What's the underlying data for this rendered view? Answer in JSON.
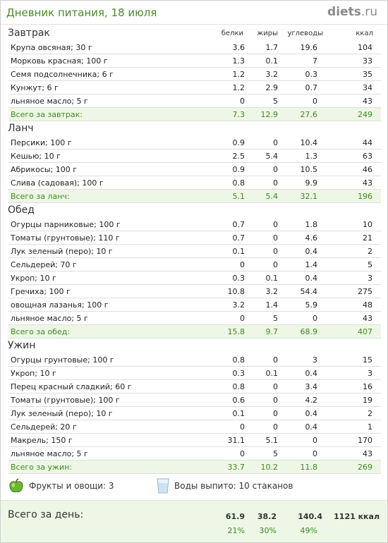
{
  "header": {
    "title": "Дневник питания, 18 июля",
    "logo_main": "diets",
    "logo_tld": ".ru"
  },
  "columns": {
    "protein": "белки",
    "fat": "жиры",
    "carbs": "углеводы",
    "kcal": "ккал"
  },
  "meals": [
    {
      "name": "Завтрак",
      "items": [
        [
          "Крупа овсяная; 30 г",
          "3.6",
          "1.7",
          "19.6",
          "104"
        ],
        [
          "Морковь красная; 100 г",
          "1.3",
          "0.1",
          "7",
          "33"
        ],
        [
          "Семя подсолнечника; 6 г",
          "1.2",
          "3.2",
          "0.3",
          "35"
        ],
        [
          "Кунжут; 6 г",
          "1.2",
          "2.9",
          "0.7",
          "34"
        ],
        [
          "льняное масло; 5 г",
          "0",
          "5",
          "0",
          "43"
        ]
      ],
      "total": [
        "Всего за завтрак:",
        "7.3",
        "12.9",
        "27.6",
        "249"
      ]
    },
    {
      "name": "Ланч",
      "items": [
        [
          "Персики; 100 г",
          "0.9",
          "0",
          "10.4",
          "44"
        ],
        [
          "Кешью; 10 г",
          "2.5",
          "5.4",
          "1.3",
          "63"
        ],
        [
          "Абрикосы; 100 г",
          "0.9",
          "0",
          "10.5",
          "46"
        ],
        [
          "Слива (садовая); 100 г",
          "0.8",
          "0",
          "9.9",
          "43"
        ]
      ],
      "total": [
        "Всего за ланч:",
        "5.1",
        "5.4",
        "32.1",
        "196"
      ]
    },
    {
      "name": "Обед",
      "items": [
        [
          "Огурцы парниковые; 100 г",
          "0.7",
          "0",
          "1.8",
          "10"
        ],
        [
          "Томаты (грунтовые); 110 г",
          "0.7",
          "0",
          "4.6",
          "21"
        ],
        [
          "Лук зеленый (перо); 10 г",
          "0.1",
          "0",
          "0.4",
          "2"
        ],
        [
          "Сельдерей; 70 г",
          "0",
          "0",
          "1.4",
          "5"
        ],
        [
          "Укроп; 10 г",
          "0.3",
          "0.1",
          "0.4",
          "3"
        ],
        [
          "Гречиха; 100 г",
          "10.8",
          "3.2",
          "54.4",
          "275"
        ],
        [
          "овощная лазанья; 100 г",
          "3.2",
          "1.4",
          "5.9",
          "48"
        ],
        [
          "льняное масло; 5 г",
          "0",
          "5",
          "0",
          "43"
        ]
      ],
      "total": [
        "Всего за обед:",
        "15.8",
        "9.7",
        "68.9",
        "407"
      ]
    },
    {
      "name": "Ужин",
      "items": [
        [
          "Огурцы грунтовые; 100 г",
          "0.8",
          "0",
          "3",
          "15"
        ],
        [
          "Укроп; 10 г",
          "0.3",
          "0.1",
          "0.4",
          "3"
        ],
        [
          "Перец красный сладкий; 60 г",
          "0.8",
          "0",
          "3.4",
          "16"
        ],
        [
          "Томаты (грунтовые); 100 г",
          "0.6",
          "0",
          "4.2",
          "19"
        ],
        [
          "Лук зеленый (перо); 10 г",
          "0.1",
          "0",
          "0.4",
          "2"
        ],
        [
          "Сельдерей; 20 г",
          "0",
          "0",
          "0.4",
          "1"
        ],
        [
          "Макрель; 150 г",
          "31.1",
          "5.1",
          "0",
          "170"
        ],
        [
          "льняное масло; 5 г",
          "0",
          "5",
          "0",
          "43"
        ]
      ],
      "total": [
        "Всего за ужин:",
        "33.7",
        "10.2",
        "11.8",
        "269"
      ]
    }
  ],
  "extras": {
    "fruits": "Фрукты и овощи: 3",
    "water": "Воды выпито: 10 стаканов"
  },
  "day": {
    "label": "Всего за день:",
    "protein": "61.9",
    "fat": "38.2",
    "carbs": "140.4",
    "kcal": "1121 ккал",
    "protein_pct": "21%",
    "fat_pct": "30%",
    "carbs_pct": "49%"
  },
  "colors": {
    "accent": "#3c8a1e",
    "total_bg": "#eef7e6"
  }
}
